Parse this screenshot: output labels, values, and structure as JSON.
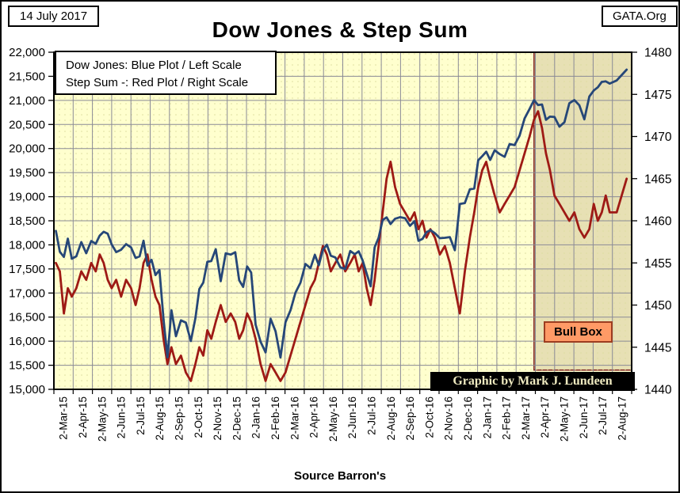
{
  "window": {
    "date_badge": "14 July 2017",
    "brand_badge": "GATA.Org"
  },
  "title": "Dow Jones & Step Sum",
  "legend": {
    "line1": "Dow Jones: Blue Plot / Left Scale",
    "line2": "Step Sum -: Red Plot / Right Scale"
  },
  "footer": {
    "source": "Source Barron's",
    "credit": "Graphic by Mark J. Lundeen"
  },
  "colors": {
    "dow_blue": "#264778",
    "step_red": "#9E1A15",
    "plot_bg": "#FFFFCE",
    "plot_dot": "#DCDC9E",
    "grid": "#8A8A96",
    "plot_border": "#000000",
    "bull_fill": "#E7E0B4",
    "bull_border": "#7E1D1D",
    "bull_label_bg": "#FF9A66",
    "bull_label_border": "#9C3D20",
    "credit_bg": "#000000",
    "credit_text": "#EFEAC0"
  },
  "chart_data": {
    "type": "line",
    "title": "Dow Jones & Step Sum",
    "grid": true,
    "x_tick_labels": [
      "2-Mar-15",
      "2-Apr-15",
      "2-May-15",
      "2-Jun-15",
      "2-Jul-15",
      "2-Aug-15",
      "2-Sep-15",
      "2-Oct-15",
      "2-Nov-15",
      "2-Dec-15",
      "2-Jan-16",
      "2-Feb-16",
      "2-Mar-16",
      "2-Apr-16",
      "2-May-16",
      "2-Jun-16",
      "2-Jul-16",
      "2-Aug-16",
      "2-Sep-16",
      "2-Oct-16",
      "2-Nov-16",
      "2-Dec-16",
      "2-Jan-17",
      "2-Feb-17",
      "2-Mar-17",
      "2-Apr-17",
      "2-May-17",
      "2-Jun-17",
      "2-Jul-17",
      "2-Aug-17"
    ],
    "left_axis": {
      "series": "Dow Jones",
      "min": 15000,
      "max": 22000,
      "step": 500,
      "label_values": [
        "22,000",
        "21,500",
        "21,000",
        "20,500",
        "20,000",
        "19,500",
        "19,000",
        "18,500",
        "18,000",
        "17,500",
        "17,000",
        "16,500",
        "16,000",
        "15,500",
        "15,000"
      ]
    },
    "right_axis": {
      "series": "Step Sum",
      "min": 1440,
      "max": 1480,
      "step": 5,
      "label_values": [
        "1480",
        "1475",
        "1470",
        "1465",
        "1460",
        "1455",
        "1450",
        "1445",
        "1440"
      ]
    },
    "series": [
      {
        "name": "Dow Jones",
        "axis": "left",
        "color_key": "dow_blue",
        "monthly_values": [
          [
            18289,
            17857,
            17749,
            18128,
            17712
          ],
          [
            17763,
            18058,
            17826,
            18080
          ],
          [
            18024,
            18191,
            18272,
            18232,
            18010
          ],
          [
            17849,
            17898,
            18016,
            17947
          ],
          [
            17730,
            17760,
            18086,
            17569,
            17690
          ],
          [
            17373,
            17477,
            16460,
            15666,
            16643
          ],
          [
            16102,
            16433,
            16385,
            16002
          ],
          [
            16472,
            17084,
            17216,
            17647,
            17664
          ],
          [
            17910,
            17245,
            17824,
            17798
          ],
          [
            17848,
            17265,
            17128,
            17552,
            17425
          ],
          [
            16346,
            15988,
            15767,
            16466
          ],
          [
            16205,
            15660,
            16392,
            16640
          ],
          [
            17007,
            17213,
            17602,
            17516
          ],
          [
            17793,
            17577,
            17897,
            18004,
            17774
          ],
          [
            17740,
            17535,
            17500,
            17873
          ],
          [
            17807,
            17865,
            17675,
            17400,
            17140
          ],
          [
            17949,
            18147,
            18516,
            18571,
            18432
          ],
          [
            18543,
            18576,
            18553,
            18395
          ],
          [
            18492,
            18085,
            18123,
            18261,
            18308
          ],
          [
            18240,
            18138,
            18146,
            18161
          ],
          [
            17888,
            18848,
            18868,
            19152
          ],
          [
            19170,
            19757,
            19843,
            19934,
            19763
          ],
          [
            19964,
            19886,
            19827,
            20094
          ],
          [
            20071,
            20269,
            20624,
            20822
          ],
          [
            21006,
            20903,
            20915,
            20597,
            20663
          ],
          [
            20656,
            20453,
            20548,
            20941
          ],
          [
            21007,
            20897,
            20607,
            21080
          ],
          [
            21206,
            21272,
            21384,
            21395,
            21350
          ],
          [
            21414,
            21638
          ]
        ]
      },
      {
        "name": "Step Sum",
        "axis": "right",
        "color_key": "step_red",
        "monthly_values": [
          [
            1455,
            1454,
            1449,
            1452,
            1451
          ],
          [
            1452,
            1454,
            1453,
            1455
          ],
          [
            1454,
            1456,
            1455,
            1453,
            1452
          ],
          [
            1453,
            1451,
            1453,
            1452
          ],
          [
            1450,
            1452,
            1455,
            1456,
            1453
          ],
          [
            1451,
            1450,
            1446,
            1443,
            1445
          ],
          [
            1443,
            1444,
            1442,
            1441
          ],
          [
            1443,
            1445,
            1444,
            1447,
            1446
          ],
          [
            1448,
            1450,
            1448,
            1449
          ],
          [
            1448,
            1446,
            1447,
            1449,
            1448
          ],
          [
            1446,
            1443,
            1441,
            1443
          ],
          [
            1442,
            1441,
            1442,
            1444
          ],
          [
            1446,
            1448,
            1450,
            1452
          ],
          [
            1453,
            1455,
            1457,
            1456,
            1454
          ],
          [
            1455,
            1456,
            1454,
            1455
          ],
          [
            1456,
            1454,
            1455,
            1452,
            1450
          ],
          [
            1453,
            1457,
            1461,
            1465,
            1467
          ],
          [
            1464,
            1462,
            1461,
            1460
          ],
          [
            1461,
            1459,
            1460,
            1458,
            1459
          ],
          [
            1458,
            1456,
            1457,
            1455
          ],
          [
            1452,
            1449,
            1454,
            1458
          ],
          [
            1461,
            1464,
            1466,
            1467,
            1465
          ],
          [
            1463,
            1461,
            1462,
            1463
          ],
          [
            1464,
            1466,
            1468,
            1470
          ],
          [
            1472,
            1473,
            1471,
            1468,
            1466
          ],
          [
            1463,
            1462,
            1461,
            1460
          ],
          [
            1461,
            1459,
            1458,
            1459
          ],
          [
            1462,
            1460,
            1461,
            1463,
            1461
          ],
          [
            1461,
            1465
          ]
        ]
      }
    ],
    "annotations": {
      "bull_box": {
        "label": "Bull Box",
        "start_month_index": 24.1,
        "end_month_index": 29,
        "top_value_left": 22000,
        "bottom_value_left": 15400
      }
    }
  }
}
